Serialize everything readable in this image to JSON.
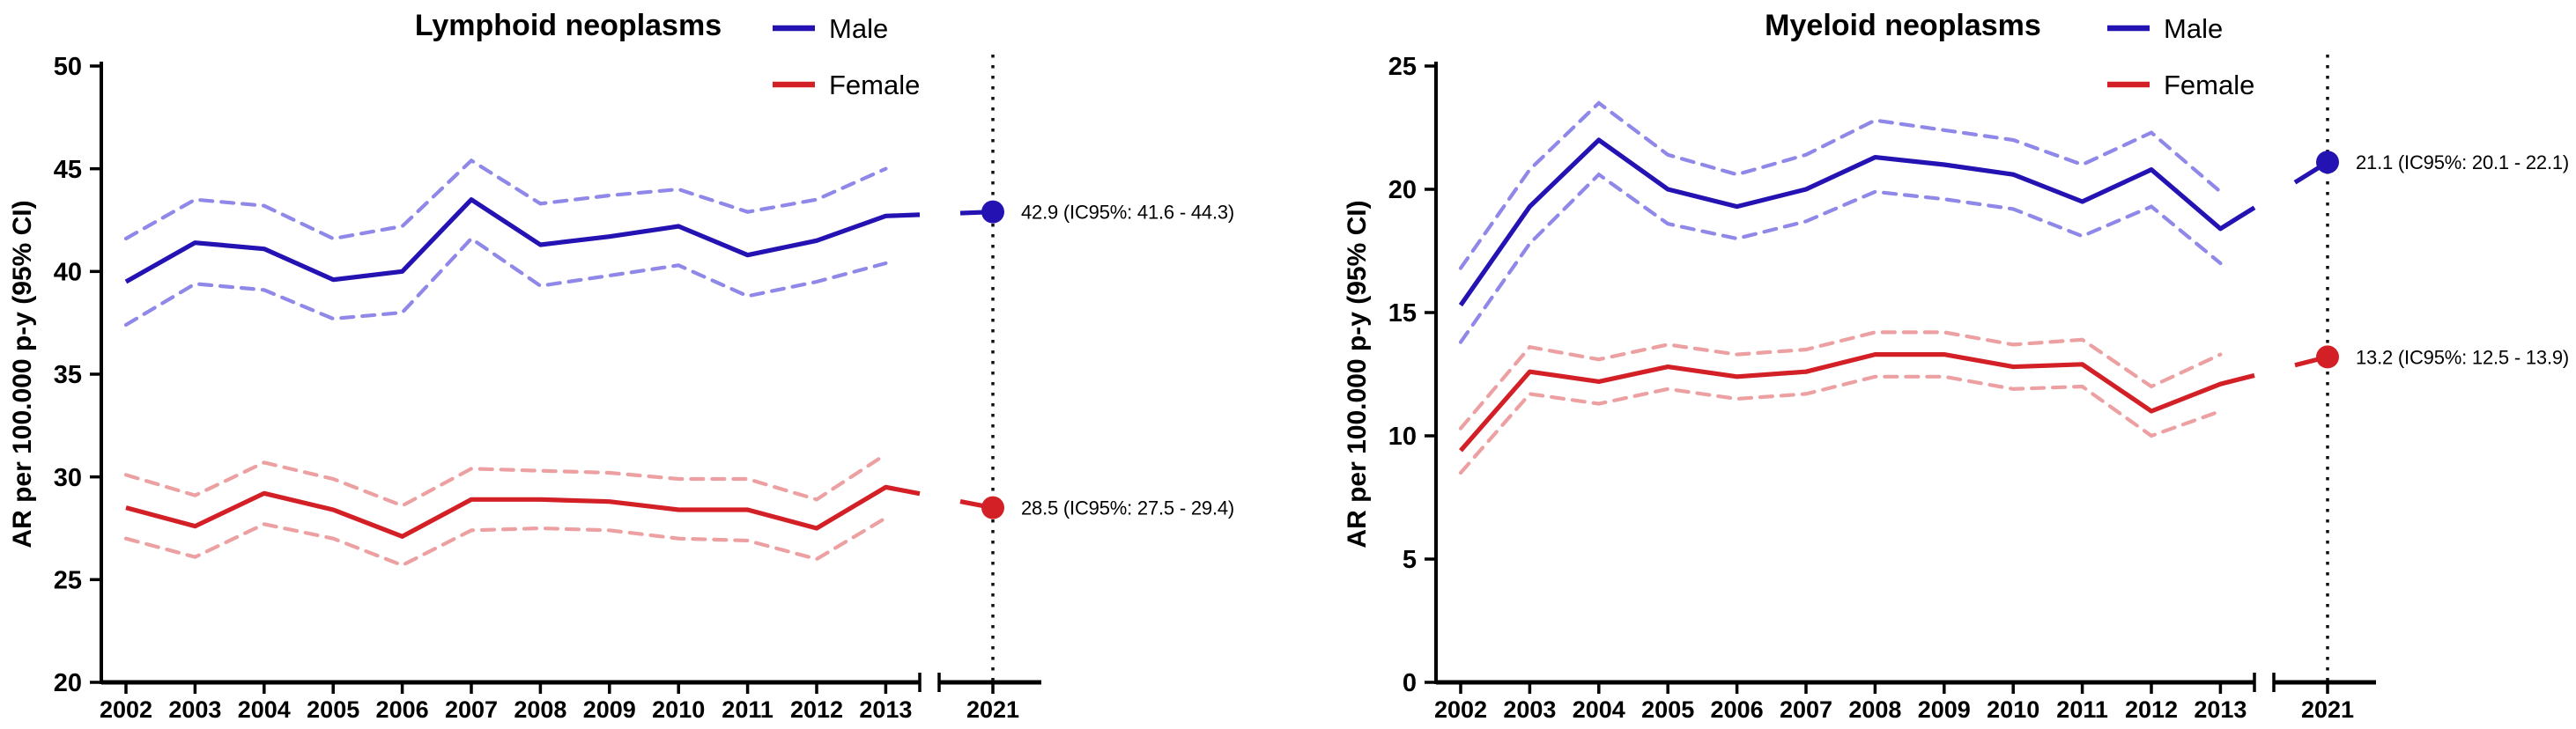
{
  "figure": {
    "background": "#ffffff",
    "axis_color": "#000000",
    "break_line_color": "#111111"
  },
  "chart_data": [
    {
      "type": "line",
      "title": "Lymphoid neoplasms",
      "ylabel": "AR per 100.000 p-y (95% CI)",
      "ylim": [
        20,
        50
      ],
      "yticks": [
        20,
        25,
        30,
        35,
        40,
        45,
        50
      ],
      "x": [
        "2002",
        "2003",
        "2004",
        "2005",
        "2006",
        "2007",
        "2008",
        "2009",
        "2010",
        "2011",
        "2012",
        "2013"
      ],
      "x_break_label": "2021",
      "grid": false,
      "legend_position": "top-right",
      "legend": [
        {
          "name": "Male",
          "color": "#2412b2"
        },
        {
          "name": "Female",
          "color": "#d32027"
        }
      ],
      "series": [
        {
          "name": "Male",
          "color": "#2412b2",
          "ci_color": "#8f88e9",
          "values": [
            39.5,
            41.4,
            41.1,
            39.6,
            40.0,
            43.5,
            41.3,
            41.7,
            42.2,
            40.8,
            41.5,
            42.7
          ],
          "ci_upper": [
            41.6,
            43.5,
            43.2,
            41.6,
            42.2,
            45.4,
            43.3,
            43.7,
            44.0,
            42.9,
            43.5,
            45.0
          ],
          "ci_lower": [
            37.4,
            39.4,
            39.1,
            37.7,
            38.0,
            41.6,
            39.3,
            39.8,
            40.3,
            38.8,
            39.5,
            40.4
          ],
          "point_2021": {
            "x": "2021",
            "value": 42.9,
            "ci_low": 41.6,
            "ci_high": 44.3,
            "label": "42.9 (IC95%: 41.6 - 44.3)"
          }
        },
        {
          "name": "Female",
          "color": "#d32027",
          "ci_color": "#eda0a2",
          "values": [
            28.5,
            27.6,
            29.2,
            28.4,
            27.1,
            28.9,
            28.9,
            28.8,
            28.4,
            28.4,
            27.5,
            29.5
          ],
          "ci_upper": [
            30.1,
            29.1,
            30.7,
            29.9,
            28.6,
            30.4,
            30.3,
            30.2,
            29.9,
            29.9,
            28.9,
            31.1
          ],
          "ci_lower": [
            27.0,
            26.1,
            27.7,
            27.0,
            25.7,
            27.4,
            27.5,
            27.4,
            27.0,
            26.9,
            26.0,
            28.0
          ],
          "point_2021": {
            "x": "2021",
            "value": 28.5,
            "ci_low": 27.5,
            "ci_high": 29.4,
            "label": "28.5 (IC95%: 27.5 - 29.4)"
          }
        }
      ]
    },
    {
      "type": "line",
      "title": "Myeloid neoplasms",
      "ylabel": "AR per 100.000 p-y (95% CI)",
      "ylim": [
        0,
        25
      ],
      "yticks": [
        0,
        5,
        10,
        15,
        20,
        25
      ],
      "x": [
        "2002",
        "2003",
        "2004",
        "2005",
        "2006",
        "2007",
        "2008",
        "2009",
        "2010",
        "2011",
        "2012",
        "2013"
      ],
      "x_break_label": "2021",
      "grid": false,
      "legend_position": "top-right",
      "legend": [
        {
          "name": "Male",
          "color": "#2412b2"
        },
        {
          "name": "Female",
          "color": "#d32027"
        }
      ],
      "series": [
        {
          "name": "Male",
          "color": "#2412b2",
          "ci_color": "#8f88e9",
          "values": [
            15.3,
            19.3,
            22.0,
            20.0,
            19.3,
            20.0,
            21.3,
            21.0,
            20.6,
            19.5,
            20.8,
            18.4
          ],
          "ci_upper": [
            16.8,
            20.8,
            23.5,
            21.4,
            20.6,
            21.4,
            22.8,
            22.4,
            22.0,
            21.0,
            22.3,
            19.9
          ],
          "ci_lower": [
            13.8,
            17.8,
            20.6,
            18.6,
            18.0,
            18.7,
            19.9,
            19.6,
            19.2,
            18.1,
            19.3,
            17.0
          ],
          "point_2021": {
            "x": "2021",
            "value": 21.1,
            "ci_low": 20.1,
            "ci_high": 22.1,
            "label": "21.1 (IC95%: 20.1 - 22.1)"
          }
        },
        {
          "name": "Female",
          "color": "#d32027",
          "ci_color": "#eda0a2",
          "values": [
            9.4,
            12.6,
            12.2,
            12.8,
            12.4,
            12.6,
            13.3,
            13.3,
            12.8,
            12.9,
            11.0,
            12.1
          ],
          "ci_upper": [
            10.3,
            13.6,
            13.1,
            13.7,
            13.3,
            13.5,
            14.2,
            14.2,
            13.7,
            13.9,
            12.0,
            13.3
          ],
          "ci_lower": [
            8.5,
            11.7,
            11.3,
            11.9,
            11.5,
            11.7,
            12.4,
            12.4,
            11.9,
            12.0,
            10.0,
            11.0
          ],
          "point_2021": {
            "x": "2021",
            "value": 13.2,
            "ci_low": 12.5,
            "ci_high": 13.9,
            "label": "13.2 (IC95%: 12.5 - 13.9)"
          }
        }
      ]
    }
  ]
}
